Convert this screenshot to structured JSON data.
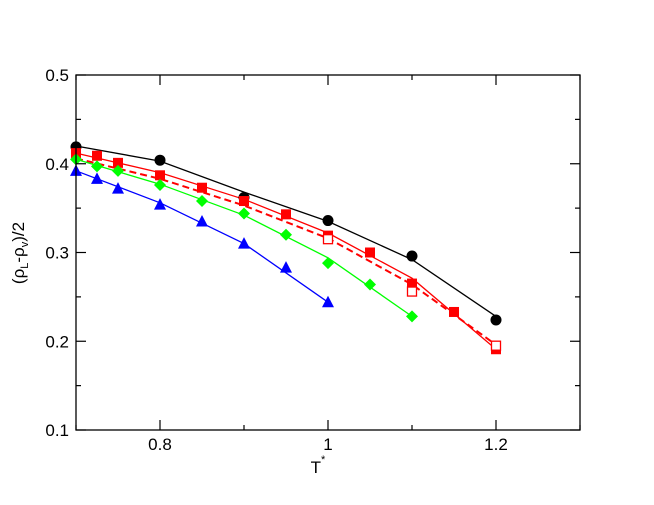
{
  "chart_data": {
    "type": "line",
    "xlabel": "T",
    "xlabel_sup": "*",
    "ylabel": {
      "open": "(ρ",
      "sub1": "L",
      "mid": "-ρ",
      "sub2": "v",
      "close": ")/2"
    },
    "xlim": [
      0.7,
      1.3
    ],
    "ylim": [
      0.1,
      0.5
    ],
    "xticks": [
      "0.8",
      "1",
      "1.2"
    ],
    "xtick_values": [
      0.8,
      1.0,
      1.2
    ],
    "yticks": [
      "0.1",
      "0.2",
      "0.3",
      "0.4",
      "0.5"
    ],
    "ytick_values": [
      0.1,
      0.2,
      0.3,
      0.4,
      0.5
    ],
    "x_minor_step": 0.1,
    "y_minor_step": 0.05,
    "grid": false,
    "series": [
      {
        "color": "#000000",
        "marker": "circle-filled",
        "line_style": "solid",
        "points": [
          [
            0.7,
            0.419
          ],
          [
            0.8,
            0.404
          ],
          [
            0.9,
            0.362
          ],
          [
            1.0,
            0.336
          ],
          [
            1.1,
            0.296
          ],
          [
            1.2,
            0.224
          ]
        ],
        "line": [
          [
            0.7,
            0.42
          ],
          [
            0.8,
            0.403
          ],
          [
            0.9,
            0.368
          ],
          [
            1.0,
            0.335
          ],
          [
            1.1,
            0.292
          ],
          [
            1.2,
            0.228
          ]
        ]
      },
      {
        "color": "#ff0000",
        "marker": "square-filled",
        "line_style": "solid",
        "points": [
          [
            0.7,
            0.412
          ],
          [
            0.725,
            0.409
          ],
          [
            0.75,
            0.401
          ],
          [
            0.8,
            0.387
          ],
          [
            0.85,
            0.373
          ],
          [
            0.9,
            0.358
          ],
          [
            0.95,
            0.343
          ],
          [
            1.0,
            0.319
          ],
          [
            1.05,
            0.3
          ],
          [
            1.1,
            0.265
          ],
          [
            1.15,
            0.233
          ],
          [
            1.2,
            0.191
          ]
        ],
        "line": [
          [
            0.7,
            0.412
          ],
          [
            0.8,
            0.39
          ],
          [
            0.9,
            0.36
          ],
          [
            1.0,
            0.322
          ],
          [
            1.1,
            0.271
          ],
          [
            1.2,
            0.191
          ]
        ]
      },
      {
        "color": "#ff0000",
        "marker": "square-open",
        "line_style": "dashed",
        "points": [
          [
            1.0,
            0.315
          ],
          [
            1.1,
            0.256
          ],
          [
            1.2,
            0.195
          ]
        ],
        "line": [
          [
            0.7,
            0.406
          ],
          [
            0.8,
            0.383
          ],
          [
            0.9,
            0.353
          ],
          [
            1.0,
            0.316
          ],
          [
            1.1,
            0.264
          ],
          [
            1.2,
            0.196
          ]
        ]
      },
      {
        "color": "#00ff00",
        "marker": "diamond-filled",
        "line_style": "solid",
        "points": [
          [
            0.7,
            0.405
          ],
          [
            0.725,
            0.397
          ],
          [
            0.75,
            0.392
          ],
          [
            0.8,
            0.376
          ],
          [
            0.85,
            0.358
          ],
          [
            0.9,
            0.344
          ],
          [
            0.95,
            0.32
          ],
          [
            1.0,
            0.288
          ],
          [
            1.05,
            0.264
          ],
          [
            1.1,
            0.228
          ]
        ],
        "line": [
          [
            0.7,
            0.405
          ],
          [
            0.8,
            0.377
          ],
          [
            0.9,
            0.342
          ],
          [
            1.0,
            0.294
          ],
          [
            1.1,
            0.228
          ]
        ]
      },
      {
        "color": "#0000ff",
        "marker": "triangle-filled",
        "line_style": "solid",
        "points": [
          [
            0.7,
            0.392
          ],
          [
            0.725,
            0.383
          ],
          [
            0.75,
            0.372
          ],
          [
            0.8,
            0.354
          ],
          [
            0.85,
            0.335
          ],
          [
            0.9,
            0.31
          ],
          [
            0.95,
            0.283
          ],
          [
            1.0,
            0.244
          ]
        ],
        "line": [
          [
            0.7,
            0.392
          ],
          [
            0.8,
            0.356
          ],
          [
            0.9,
            0.31
          ],
          [
            1.0,
            0.244
          ]
        ]
      }
    ]
  }
}
